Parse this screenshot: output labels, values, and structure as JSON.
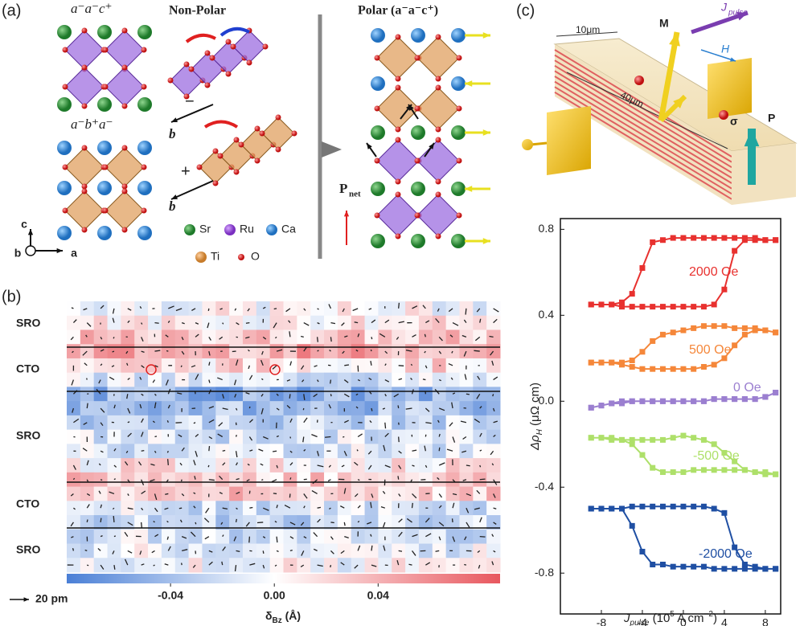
{
  "panel_a": {
    "label": "(a)",
    "tilt_top": "a⁻a⁻c⁺",
    "tilt_bottom": "a⁻b⁺a⁻",
    "nonpolar": "Non-Polar",
    "polar": "Polar (a⁻a⁻c⁺)",
    "minus": "−",
    "plus": "+",
    "b_axis": "b",
    "axes": [
      "c",
      "b",
      "a"
    ],
    "legend": [
      "Sr",
      "Ru",
      "Ca",
      "Ti",
      "O"
    ],
    "pnet": [
      "P",
      "net"
    ]
  },
  "panel_c": {
    "label": "(c)",
    "width": "10μm",
    "length": "40μm",
    "m": "M",
    "jpulse": [
      "J",
      "pulse"
    ],
    "h": "H",
    "sigma": "σ",
    "p": "P"
  },
  "chart_data": [
    {
      "type": "heatmap",
      "label": "(b)",
      "row_labels": [
        "SRO",
        "CTO",
        "SRO",
        "CTO",
        "SRO"
      ],
      "clim": [
        -0.08,
        0.087
      ],
      "cticks": [
        -0.04,
        {
          "value": 0,
          "label": "0.00"
        },
        0.04
      ],
      "clabel_parts": [
        "δ",
        "Bz",
        " (Å)"
      ],
      "colors": [
        "#4a7fd6",
        "#ffffff",
        "#e8575e"
      ],
      "scale_label": "20 pm"
    },
    {
      "type": "line",
      "x": [
        -9,
        -8,
        -7,
        -6,
        -5,
        -4,
        -3,
        -2,
        -1,
        0,
        1,
        2,
        3,
        4,
        5,
        6,
        7,
        8,
        9,
        9,
        8,
        7,
        6,
        5,
        4,
        3,
        2,
        1,
        0,
        -1,
        -2,
        -3,
        -4,
        -5,
        -6,
        -7,
        -8,
        -9
      ],
      "xlim": [
        -12,
        9.5
      ],
      "xticks": [
        -8,
        -4,
        0,
        4,
        8
      ],
      "ylim": [
        -0.99,
        0.85
      ],
      "yticks": [
        -0.8,
        -0.4,
        {
          "value": 0,
          "label": "0.0"
        },
        0.4,
        0.8
      ],
      "xlabel_parts": [
        "J",
        "pulse",
        " (10",
        "5",
        " A cm",
        "−2",
        ")"
      ],
      "ylabel_parts": [
        "Δρ",
        "H",
        " (μΩ cm)"
      ],
      "series": [
        {
          "name": "2000 Oe",
          "color": "#e8312f",
          "values": [
            0.45,
            0.45,
            0.45,
            0.44,
            0.44,
            0.44,
            0.44,
            0.44,
            0.44,
            0.44,
            0.44,
            0.44,
            0.45,
            0.52,
            0.7,
            0.75,
            0.75,
            0.75,
            0.75,
            0.75,
            0.75,
            0.76,
            0.76,
            0.76,
            0.76,
            0.76,
            0.76,
            0.76,
            0.76,
            0.76,
            0.75,
            0.74,
            0.62,
            0.5,
            0.46,
            0.45,
            0.45,
            0.45
          ]
        },
        {
          "name": "500 Oe",
          "color": "#f5873a",
          "values": [
            0.18,
            0.18,
            0.18,
            0.17,
            0.16,
            0.15,
            0.15,
            0.15,
            0.15,
            0.15,
            0.15,
            0.16,
            0.17,
            0.2,
            0.26,
            0.31,
            0.33,
            0.33,
            0.32,
            0.32,
            0.33,
            0.34,
            0.34,
            0.34,
            0.35,
            0.35,
            0.35,
            0.34,
            0.33,
            0.32,
            0.31,
            0.28,
            0.23,
            0.19,
            0.18,
            0.18,
            0.18,
            0.18
          ]
        },
        {
          "name": "0 Oe",
          "color": "#9b7fd0",
          "values": [
            -0.03,
            -0.02,
            -0.01,
            0,
            0,
            0,
            0,
            0,
            0,
            0,
            0,
            0,
            0.01,
            0.01,
            0.01,
            0.01,
            0.01,
            0.02,
            0.04,
            0.04,
            0.02,
            0.01,
            0.01,
            0.01,
            0.01,
            0.01,
            0,
            0,
            0,
            0,
            0,
            0,
            0,
            0,
            -0.01,
            -0.01,
            -0.02,
            -0.03
          ]
        },
        {
          "name": "-500 Oe",
          "color": "#aee06a",
          "values": [
            -0.17,
            -0.17,
            -0.18,
            -0.18,
            -0.18,
            -0.18,
            -0.18,
            -0.18,
            -0.17,
            -0.16,
            -0.17,
            -0.18,
            -0.2,
            -0.24,
            -0.28,
            -0.32,
            -0.33,
            -0.33,
            -0.34,
            -0.34,
            -0.34,
            -0.33,
            -0.32,
            -0.32,
            -0.32,
            -0.32,
            -0.32,
            -0.32,
            -0.33,
            -0.33,
            -0.33,
            -0.31,
            -0.25,
            -0.2,
            -0.18,
            -0.17,
            -0.17,
            -0.17
          ]
        },
        {
          "name": "-2000 Oe",
          "color": "#1f4fa3",
          "values": [
            -0.5,
            -0.5,
            -0.5,
            -0.5,
            -0.49,
            -0.49,
            -0.49,
            -0.49,
            -0.49,
            -0.49,
            -0.49,
            -0.49,
            -0.5,
            -0.52,
            -0.68,
            -0.76,
            -0.77,
            -0.78,
            -0.78,
            -0.78,
            -0.78,
            -0.78,
            -0.78,
            -0.78,
            -0.78,
            -0.78,
            -0.77,
            -0.77,
            -0.77,
            -0.77,
            -0.76,
            -0.76,
            -0.7,
            -0.58,
            -0.5,
            -0.5,
            -0.5,
            -0.5
          ]
        }
      ]
    }
  ]
}
